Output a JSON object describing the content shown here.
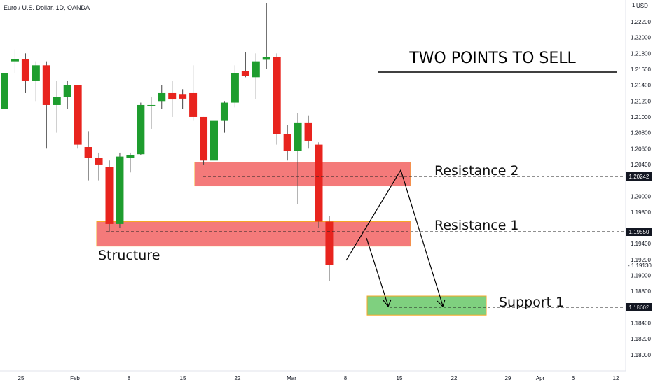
{
  "chart_data": {
    "type": "candlestick",
    "title": "Euro / U.S. Dollar, 1D, OANDA",
    "currency": "USD",
    "headline": "TWO POINTS TO SELL",
    "colors": {
      "up": "#1e9d2e",
      "down": "#e8241e",
      "zone_red": "#f47a7a",
      "zone_green": "#7fd07f",
      "zone_border": "#f5a623",
      "tag_bg": "#131722"
    },
    "y_axis": {
      "ticks": [
        "1.22200",
        "1.22000",
        "1.21800",
        "1.21600",
        "1.21400",
        "1.21200",
        "1.21000",
        "1.20800",
        "1.20600",
        "1.20400",
        "1.20000",
        "1.19800",
        "1.19400",
        "1.19200",
        "1.19000",
        "1.18800",
        "1.18600",
        "1.18400",
        "1.18200",
        "1.18000"
      ],
      "top_label": "1",
      "marker_labels": [
        "1.19130"
      ],
      "ylim": [
        1.179,
        1.224
      ]
    },
    "x_axis": {
      "ticks": [
        "25",
        "Feb",
        "8",
        "15",
        "22",
        "Mar",
        "8",
        "15",
        "22",
        "29",
        "Apr",
        "6",
        "12"
      ]
    },
    "candles": [
      {
        "o": 1.211,
        "h": 1.2155,
        "l": 1.211,
        "c": 1.2155
      },
      {
        "o": 1.217,
        "h": 1.2185,
        "l": 1.2155,
        "c": 1.2173
      },
      {
        "o": 1.2173,
        "h": 1.218,
        "l": 1.213,
        "c": 1.2145
      },
      {
        "o": 1.2145,
        "h": 1.217,
        "l": 1.212,
        "c": 1.2165
      },
      {
        "o": 1.2165,
        "h": 1.217,
        "l": 1.206,
        "c": 1.2115
      },
      {
        "o": 1.2115,
        "h": 1.2145,
        "l": 1.208,
        "c": 1.2125
      },
      {
        "o": 1.2125,
        "h": 1.2145,
        "l": 1.211,
        "c": 1.214
      },
      {
        "o": 1.214,
        "h": 1.214,
        "l": 1.206,
        "c": 1.2065
      },
      {
        "o": 1.2062,
        "h": 1.2082,
        "l": 1.202,
        "c": 1.2048
      },
      {
        "o": 1.2048,
        "h": 1.2055,
        "l": 1.202,
        "c": 1.204
      },
      {
        "o": 1.2037,
        "h": 1.2045,
        "l": 1.1955,
        "c": 1.1965
      },
      {
        "o": 1.1965,
        "h": 1.2055,
        "l": 1.196,
        "c": 1.205
      },
      {
        "o": 1.2048,
        "h": 1.2055,
        "l": 1.203,
        "c": 1.2052
      },
      {
        "o": 1.2053,
        "h": 1.2118,
        "l": 1.2052,
        "c": 1.2115
      },
      {
        "o": 1.2115,
        "h": 1.2125,
        "l": 1.2085,
        "c": 1.2115
      },
      {
        "o": 1.212,
        "h": 1.214,
        "l": 1.211,
        "c": 1.213
      },
      {
        "o": 1.213,
        "h": 1.2145,
        "l": 1.21,
        "c": 1.2122
      },
      {
        "o": 1.2128,
        "h": 1.2135,
        "l": 1.211,
        "c": 1.2123
      },
      {
        "o": 1.213,
        "h": 1.2165,
        "l": 1.2095,
        "c": 1.21
      },
      {
        "o": 1.21,
        "h": 1.21,
        "l": 1.204,
        "c": 1.2045
      },
      {
        "o": 1.2045,
        "h": 1.2095,
        "l": 1.204,
        "c": 1.2095
      },
      {
        "o": 1.2095,
        "h": 1.212,
        "l": 1.208,
        "c": 1.2118
      },
      {
        "o": 1.2118,
        "h": 1.2165,
        "l": 1.2112,
        "c": 1.2155
      },
      {
        "o": 1.2158,
        "h": 1.2182,
        "l": 1.215,
        "c": 1.2152
      },
      {
        "o": 1.215,
        "h": 1.218,
        "l": 1.2122,
        "c": 1.217
      },
      {
        "o": 1.2172,
        "h": 1.2243,
        "l": 1.216,
        "c": 1.2175
      },
      {
        "o": 1.2175,
        "h": 1.218,
        "l": 1.2065,
        "c": 1.2078
      },
      {
        "o": 1.2078,
        "h": 1.209,
        "l": 1.2045,
        "c": 1.2057
      },
      {
        "o": 1.2057,
        "h": 1.2105,
        "l": 1.199,
        "c": 1.2093
      },
      {
        "o": 1.2093,
        "h": 1.2102,
        "l": 1.206,
        "c": 1.207
      },
      {
        "o": 1.2065,
        "h": 1.2068,
        "l": 1.196,
        "c": 1.1968
      },
      {
        "o": 1.1968,
        "h": 1.1975,
        "l": 1.1893,
        "c": 1.1913
      }
    ],
    "zones": [
      {
        "label": "Resistance 2",
        "top": 1.2043,
        "bottom": 1.2013,
        "color": "red",
        "level": "1.20242"
      },
      {
        "label": "Resistance 1",
        "top": 1.1968,
        "bottom": 1.1937,
        "color": "red",
        "level": "1.19550"
      },
      {
        "label": "Support 1",
        "top": 1.1874,
        "bottom": 1.185,
        "color": "green",
        "level": "1.18602"
      }
    ],
    "annotations": {
      "structure": "Structure"
    }
  }
}
